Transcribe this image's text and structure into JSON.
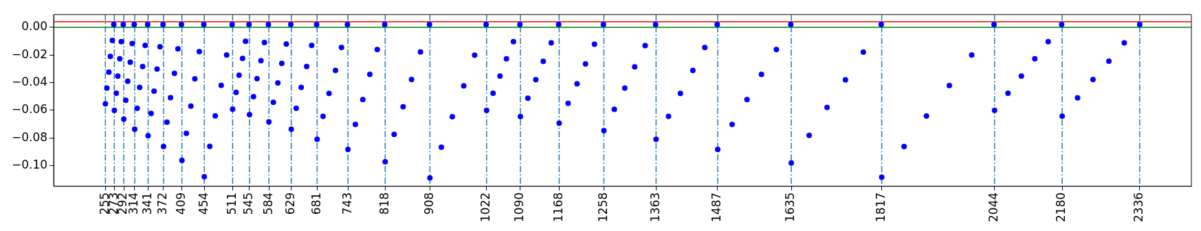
{
  "chart_data": {
    "type": "scatter",
    "marker": "circle",
    "grid": false,
    "legend": false,
    "xlim": [
      151,
      2440
    ],
    "ylim": [
      -0.1149,
      0.0092
    ],
    "xticks": [
      255,
      273,
      292,
      314,
      341,
      372,
      409,
      454,
      511,
      545,
      584,
      629,
      681,
      743,
      818,
      908,
      1022,
      1090,
      1168,
      1258,
      1363,
      1487,
      1635,
      1817,
      2044,
      2180,
      2336
    ],
    "yticks": [
      {
        "value": -0.1,
        "label": "−0.10"
      },
      {
        "value": -0.08,
        "label": "−0.08"
      },
      {
        "value": -0.06,
        "label": "−0.06"
      },
      {
        "value": -0.04,
        "label": "−0.04"
      },
      {
        "value": -0.02,
        "label": "−0.02"
      },
      {
        "value": 0,
        "label": "0.00"
      }
    ],
    "series": [
      {
        "color": "#0000ff",
        "x": [
          255,
          258,
          262,
          265,
          269,
          272,
          273,
          277,
          280,
          284,
          287,
          291,
          292,
          296,
          300,
          305,
          309,
          313,
          314,
          319,
          324,
          330,
          335,
          340,
          341,
          347,
          353,
          359,
          365,
          371,
          372,
          379,
          386,
          394,
          401,
          408,
          409,
          418,
          427,
          435,
          444,
          453,
          454,
          465,
          476,
          488,
          499,
          510
        ],
        "values": [
          -0.0554,
          -0.0439,
          -0.0324,
          -0.021,
          -0.0095,
          0.002,
          -0.0601,
          -0.0477,
          -0.0353,
          -0.0228,
          -0.0104,
          0.002,
          -0.0664,
          -0.0527,
          -0.039,
          -0.0253,
          -0.0117,
          0.002,
          -0.0737,
          -0.0586,
          -0.0434,
          -0.0283,
          -0.0131,
          0.002,
          -0.0784,
          -0.0623,
          -0.0462,
          -0.0302,
          -0.0141,
          0.002,
          -0.0862,
          -0.0686,
          -0.0509,
          -0.0333,
          -0.0156,
          0.002,
          -0.0962,
          -0.0766,
          -0.0569,
          -0.0373,
          -0.0176,
          0.002,
          -0.108,
          -0.086,
          -0.064,
          -0.042,
          -0.02,
          0.002
        ]
      },
      {
        "color": "#0000ff",
        "x": [
          511,
          518,
          524,
          531,
          537,
          544,
          545,
          553,
          560,
          568,
          575,
          583,
          584,
          593,
          602,
          610,
          619,
          628,
          629,
          639,
          649,
          660,
          670,
          680,
          681,
          693,
          705,
          718,
          730,
          742,
          743,
          758,
          773,
          787,
          802,
          817,
          818,
          836,
          854,
          871,
          889,
          907,
          908,
          931,
          953,
          976,
          998,
          1021
        ],
        "values": [
          -0.0592,
          -0.047,
          -0.0347,
          -0.0225,
          -0.0102,
          0.002,
          -0.0632,
          -0.0502,
          -0.0371,
          -0.0241,
          -0.011,
          0.002,
          -0.0683,
          -0.0542,
          -0.0402,
          -0.0261,
          -0.0121,
          0.002,
          -0.0737,
          -0.0586,
          -0.0434,
          -0.0283,
          -0.0131,
          0.002,
          -0.081,
          -0.0644,
          -0.0478,
          -0.0312,
          -0.0146,
          0.002,
          -0.0883,
          -0.0702,
          -0.0522,
          -0.0341,
          -0.0161,
          0.002,
          -0.0972,
          -0.0774,
          -0.0575,
          -0.0377,
          -0.0178,
          0.002,
          -0.1089,
          -0.0867,
          -0.0646,
          -0.0424,
          -0.0202,
          0.002
        ]
      },
      {
        "color": "#0000ff",
        "x": [
          1022,
          1035,
          1049,
          1062,
          1076,
          1089,
          1090,
          1105,
          1121,
          1136,
          1152,
          1167,
          1168,
          1186,
          1204,
          1221,
          1239,
          1257,
          1258,
          1279,
          1300,
          1320,
          1341,
          1362,
          1363,
          1388,
          1412,
          1437,
          1461,
          1486,
          1487,
          1516,
          1546,
          1575,
          1605,
          1634,
          1635,
          1671,
          1707,
          1744,
          1780,
          1816,
          1817,
          1862,
          1907,
          1953,
          1998,
          2043,
          2044,
          2071,
          2098,
          2125,
          2152,
          2179,
          2180,
          2211,
          2242,
          2274,
          2305,
          2336
        ],
        "values": [
          -0.0601,
          -0.0477,
          -0.0353,
          -0.0228,
          -0.0104,
          0.002,
          -0.0645,
          -0.0512,
          -0.0379,
          -0.0246,
          -0.0113,
          0.002,
          -0.0693,
          -0.055,
          -0.0408,
          -0.0265,
          -0.0122,
          0.002,
          -0.0746,
          -0.0593,
          -0.044,
          -0.0286,
          -0.0133,
          0.002,
          -0.081,
          -0.0644,
          -0.0478,
          -0.0312,
          -0.0146,
          0.002,
          -0.0883,
          -0.0702,
          -0.0522,
          -0.0341,
          -0.0161,
          0.002,
          -0.0981,
          -0.0781,
          -0.058,
          -0.038,
          -0.018,
          0.002,
          -0.1083,
          -0.0862,
          -0.0641,
          -0.0421,
          -0.02,
          0.002,
          -0.0601,
          -0.0477,
          -0.0353,
          -0.0228,
          -0.0104,
          0.002,
          -0.0642,
          -0.051,
          -0.0377,
          -0.0245,
          -0.0112,
          0.002
        ]
      }
    ],
    "ref_lines": [
      {
        "axis": "y",
        "value": 0.004,
        "color": "#ff0000",
        "line_style": "solid"
      },
      {
        "axis": "y",
        "value": 0,
        "color": "#008000",
        "line_style": "solid"
      },
      {
        "axis": "x",
        "value": 255,
        "color": "#1f77b4",
        "line_style": "dashed"
      },
      {
        "axis": "x",
        "value": 273,
        "color": "#1f77b4",
        "line_style": "dashed"
      },
      {
        "axis": "x",
        "value": 292,
        "color": "#1f77b4",
        "line_style": "dashed"
      },
      {
        "axis": "x",
        "value": 314,
        "color": "#1f77b4",
        "line_style": "dashed"
      },
      {
        "axis": "x",
        "value": 341,
        "color": "#1f77b4",
        "line_style": "dashed"
      },
      {
        "axis": "x",
        "value": 372,
        "color": "#1f77b4",
        "line_style": "dashed"
      },
      {
        "axis": "x",
        "value": 409,
        "color": "#1f77b4",
        "line_style": "dashed"
      },
      {
        "axis": "x",
        "value": 454,
        "color": "#1f77b4",
        "line_style": "dashed"
      },
      {
        "axis": "x",
        "value": 511,
        "color": "#1f77b4",
        "line_style": "dashed"
      },
      {
        "axis": "x",
        "value": 545,
        "color": "#1f77b4",
        "line_style": "dashed"
      },
      {
        "axis": "x",
        "value": 584,
        "color": "#1f77b4",
        "line_style": "dashed"
      },
      {
        "axis": "x",
        "value": 629,
        "color": "#1f77b4",
        "line_style": "dashed"
      },
      {
        "axis": "x",
        "value": 681,
        "color": "#1f77b4",
        "line_style": "dashed"
      },
      {
        "axis": "x",
        "value": 743,
        "color": "#1f77b4",
        "line_style": "dashed"
      },
      {
        "axis": "x",
        "value": 818,
        "color": "#1f77b4",
        "line_style": "dashed"
      },
      {
        "axis": "x",
        "value": 908,
        "color": "#1f77b4",
        "line_style": "dashed"
      },
      {
        "axis": "x",
        "value": 1022,
        "color": "#1f77b4",
        "line_style": "dashed"
      },
      {
        "axis": "x",
        "value": 1090,
        "color": "#1f77b4",
        "line_style": "dashed"
      },
      {
        "axis": "x",
        "value": 1168,
        "color": "#1f77b4",
        "line_style": "dashed"
      },
      {
        "axis": "x",
        "value": 1258,
        "color": "#1f77b4",
        "line_style": "dashed"
      },
      {
        "axis": "x",
        "value": 1363,
        "color": "#1f77b4",
        "line_style": "dashed"
      },
      {
        "axis": "x",
        "value": 1487,
        "color": "#1f77b4",
        "line_style": "dashed"
      },
      {
        "axis": "x",
        "value": 1635,
        "color": "#1f77b4",
        "line_style": "dashed"
      },
      {
        "axis": "x",
        "value": 1817,
        "color": "#1f77b4",
        "line_style": "dashed"
      },
      {
        "axis": "x",
        "value": 2044,
        "color": "#1f77b4",
        "line_style": "dashed"
      },
      {
        "axis": "x",
        "value": 2180,
        "color": "#1f77b4",
        "line_style": "dashed"
      },
      {
        "axis": "x",
        "value": 2336,
        "color": "#1f77b4",
        "line_style": "dashed"
      }
    ]
  }
}
